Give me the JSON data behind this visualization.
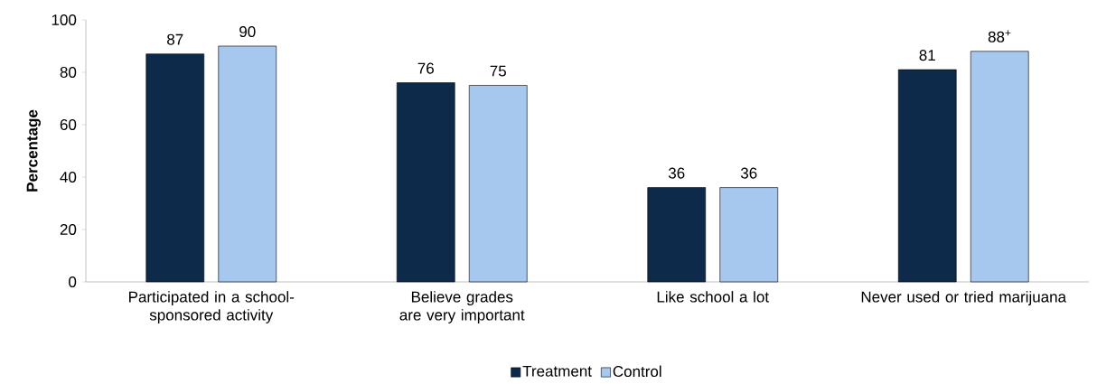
{
  "chart_data": {
    "type": "bar",
    "ylabel": "Percentage",
    "categories": [
      "Participated in a school-sponsored activity",
      "Believe grades are very important",
      "Like school a lot",
      "Never used or tried marijuana"
    ],
    "series": [
      {
        "name": "Treatment",
        "color": "#0e2a4b",
        "values": [
          87,
          76,
          36,
          81
        ],
        "value_labels": [
          "87",
          "76",
          "36",
          "81"
        ]
      },
      {
        "name": "Control",
        "color": "#a7c8ee",
        "values": [
          90,
          75,
          36,
          88
        ],
        "value_labels": [
          "90",
          "75",
          "36",
          "88$^{+}$"
        ]
      }
    ],
    "ylim": [
      0,
      100
    ],
    "yticks": [
      0,
      20,
      40,
      60,
      80,
      100
    ],
    "legend": "bottom"
  }
}
